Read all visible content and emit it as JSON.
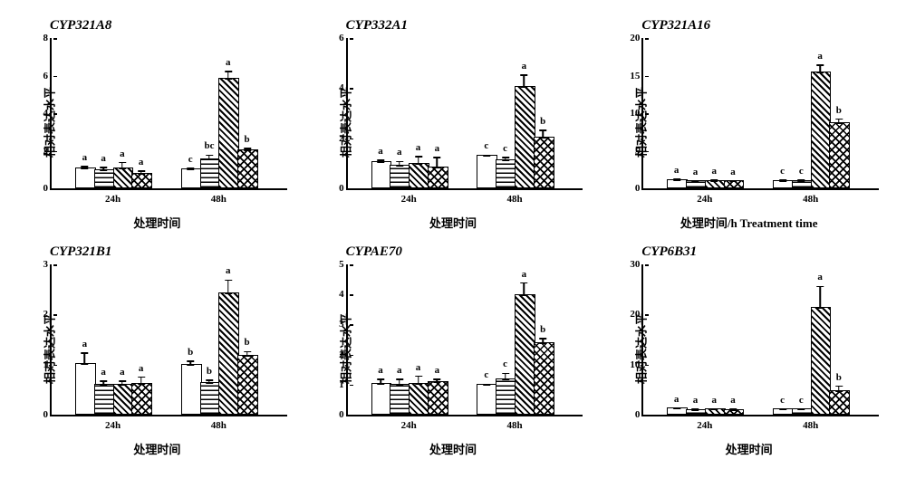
{
  "common": {
    "ylabel": "相对表达水平",
    "xlabel_short": "处理时间",
    "xlabel_long": "处理时间/h Treatment time",
    "group_labels": [
      "24h",
      "48h"
    ],
    "patterns": [
      "p-open",
      "p-hline",
      "p-diag",
      "p-cross"
    ],
    "bar_width_pct": 8,
    "group_gap_pct": 6,
    "group_positions": [
      10,
      55
    ],
    "border_color": "#000000",
    "background_color": "#ffffff",
    "title_fontsize": 15,
    "label_fontsize": 13,
    "tick_fontsize": 11
  },
  "charts": [
    {
      "title": "CYP321A8",
      "xlabel_key": "xlabel_short",
      "ylim": [
        0,
        8
      ],
      "ytick_step": 2,
      "groups": [
        {
          "values": [
            1.0,
            0.9,
            1.0,
            0.7
          ],
          "errs": [
            0.2,
            0.25,
            0.4,
            0.25
          ],
          "sig": [
            "a",
            "a",
            "a",
            "a"
          ]
        },
        {
          "values": [
            0.95,
            1.5,
            5.8,
            2.0
          ],
          "errs": [
            0.15,
            0.3,
            0.45,
            0.15
          ],
          "sig": [
            "c",
            "bc",
            "a",
            "b"
          ]
        }
      ]
    },
    {
      "title": "CYP332A1",
      "xlabel_key": "xlabel_short",
      "ylim": [
        0,
        6
      ],
      "ytick_step": 2,
      "groups": [
        {
          "values": [
            1.0,
            0.85,
            0.95,
            0.8
          ],
          "errs": [
            0.15,
            0.25,
            0.35,
            0.45
          ],
          "sig": [
            "a",
            "a",
            "a",
            "a"
          ]
        },
        {
          "values": [
            1.25,
            1.1,
            4.0,
            2.0
          ],
          "errs": [
            0.1,
            0.15,
            0.55,
            0.35
          ],
          "sig": [
            "c",
            "c",
            "a",
            "b"
          ]
        }
      ]
    },
    {
      "title": "CYP321A16",
      "xlabel_key": "xlabel_long",
      "ylim": [
        0,
        20
      ],
      "ytick_step": 5,
      "groups": [
        {
          "values": [
            1.0,
            0.8,
            0.9,
            0.8
          ],
          "errs": [
            0.3,
            0.3,
            0.3,
            0.3
          ],
          "sig": [
            "a",
            "a",
            "a",
            "a"
          ]
        },
        {
          "values": [
            0.9,
            0.9,
            15.3,
            8.5
          ],
          "errs": [
            0.3,
            0.3,
            1.2,
            0.8
          ],
          "sig": [
            "c",
            "c",
            "a",
            "b"
          ]
        }
      ]
    },
    {
      "title": "CYP321B1",
      "xlabel_key": "xlabel_short",
      "ylim": [
        0,
        3
      ],
      "ytick_step": 1,
      "groups": [
        {
          "values": [
            1.0,
            0.58,
            0.58,
            0.6
          ],
          "errs": [
            0.24,
            0.1,
            0.1,
            0.16
          ],
          "sig": [
            "a",
            "a",
            "a",
            "a"
          ]
        },
        {
          "values": [
            0.98,
            0.62,
            2.4,
            1.15
          ],
          "errs": [
            0.1,
            0.08,
            0.3,
            0.12
          ],
          "sig": [
            "b",
            "b",
            "a",
            "b"
          ]
        }
      ]
    },
    {
      "title": "CYPAE70",
      "xlabel_key": "xlabel_short",
      "ylim": [
        0,
        5
      ],
      "ytick_step": 1,
      "groups": [
        {
          "values": [
            1.0,
            0.95,
            1.0,
            1.05
          ],
          "errs": [
            0.2,
            0.25,
            0.3,
            0.15
          ],
          "sig": [
            "a",
            "a",
            "a",
            "a"
          ]
        },
        {
          "values": [
            0.95,
            1.15,
            3.95,
            2.35
          ],
          "errs": [
            0.08,
            0.25,
            0.45,
            0.2
          ],
          "sig": [
            "c",
            "c",
            "a",
            "b"
          ]
        }
      ]
    },
    {
      "title": "CYP6B31",
      "xlabel_key": "xlabel_short",
      "ylim": [
        0,
        30
      ],
      "ytick_step": 10,
      "groups": [
        {
          "values": [
            1.0,
            0.8,
            0.9,
            0.8
          ],
          "errs": [
            0.4,
            0.4,
            0.4,
            0.4
          ],
          "sig": [
            "a",
            "a",
            "a",
            "a"
          ]
        },
        {
          "values": [
            0.9,
            0.9,
            21.2,
            4.6
          ],
          "errs": [
            0.4,
            0.4,
            4.5,
            1.2
          ],
          "sig": [
            "c",
            "c",
            "a",
            "b"
          ]
        }
      ]
    }
  ]
}
